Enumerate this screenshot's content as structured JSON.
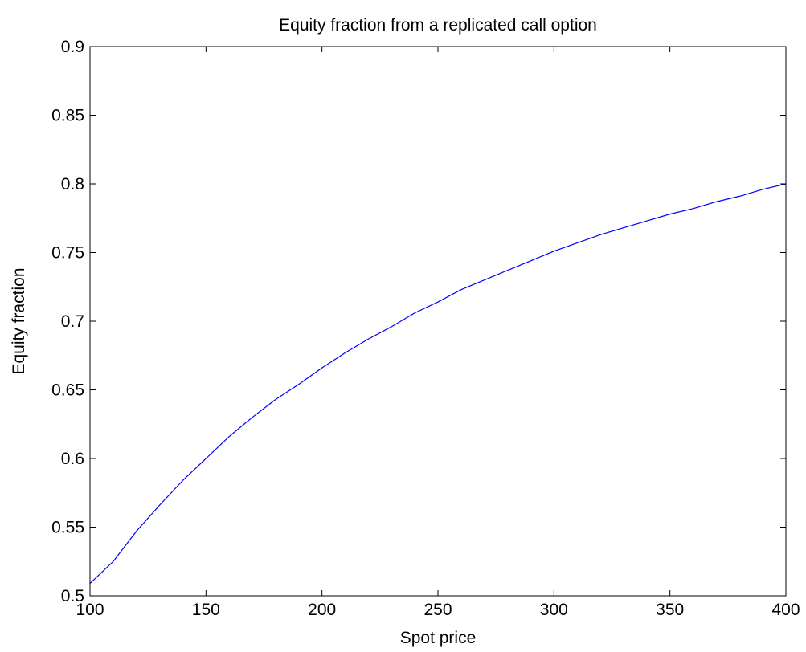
{
  "chart_data": {
    "type": "line",
    "title": "Equity fraction from a replicated call option",
    "xlabel": "Spot price",
    "ylabel": "Equity fraction",
    "xlim": [
      100,
      400
    ],
    "ylim": [
      0.5,
      0.9
    ],
    "xticks": [
      "100",
      "150",
      "200",
      "250",
      "300",
      "350",
      "400"
    ],
    "yticks": [
      "0.5",
      "0.55",
      "0.6",
      "0.65",
      "0.7",
      "0.75",
      "0.8",
      "0.85",
      "0.9"
    ],
    "grid": false,
    "series": [
      {
        "color": "#0000ff",
        "x": [
          100,
          110,
          120,
          130,
          140,
          150,
          160,
          170,
          180,
          190,
          200,
          210,
          220,
          230,
          240,
          250,
          260,
          270,
          280,
          290,
          300,
          310,
          320,
          330,
          340,
          350,
          360,
          370,
          380,
          390,
          400
        ],
        "y": [
          0.509,
          0.525,
          0.547,
          0.566,
          0.584,
          0.6,
          0.616,
          0.63,
          0.643,
          0.654,
          0.666,
          0.677,
          0.687,
          0.696,
          0.706,
          0.714,
          0.723,
          0.73,
          0.737,
          0.744,
          0.751,
          0.757,
          0.763,
          0.768,
          0.773,
          0.778,
          0.782,
          0.787,
          0.791,
          0.796,
          0.8
        ]
      }
    ]
  }
}
